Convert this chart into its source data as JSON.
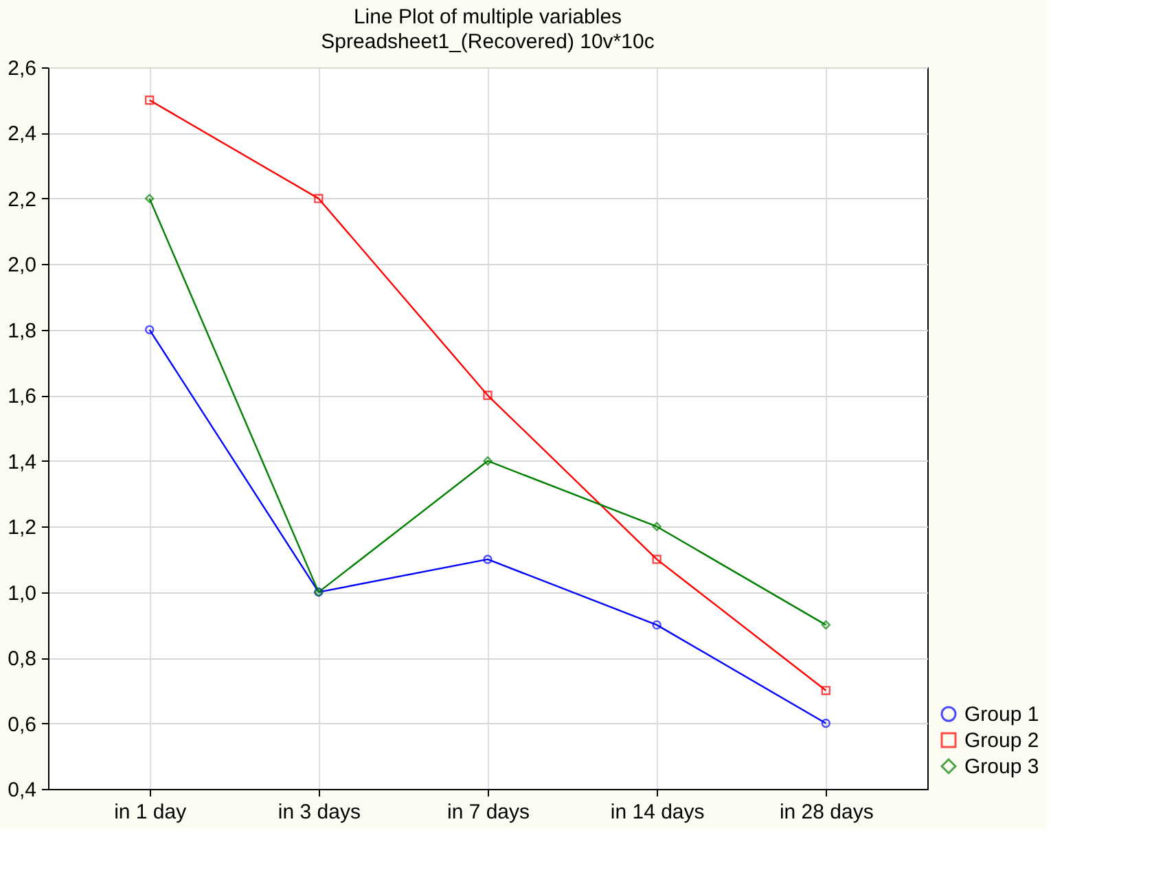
{
  "chart_data": {
    "type": "line",
    "title": "Line Plot of multiple variables",
    "subtitle": "Spreadsheet1_(Recovered) 10v*10c",
    "categories": [
      "in 1 day",
      "in 3 days",
      "in 7 days",
      "in 14 days",
      "in 28 days"
    ],
    "series": [
      {
        "name": "Group 1",
        "color": "#0000ff",
        "marker": "circle",
        "values": [
          1.8,
          1.0,
          1.1,
          0.9,
          0.6
        ]
      },
      {
        "name": "Group 2",
        "color": "#ff0000",
        "marker": "square",
        "values": [
          2.5,
          2.2,
          1.6,
          1.1,
          0.7
        ]
      },
      {
        "name": "Group 3",
        "color": "#008000",
        "marker": "diamond",
        "values": [
          2.2,
          1.0,
          1.4,
          1.2,
          0.9
        ]
      }
    ],
    "ylim": [
      0.4,
      2.6
    ],
    "yticks": [
      {
        "value": 0.4,
        "label": "0,4"
      },
      {
        "value": 0.6,
        "label": "0,6"
      },
      {
        "value": 0.8,
        "label": "0,8"
      },
      {
        "value": 1.0,
        "label": "1,0"
      },
      {
        "value": 1.2,
        "label": "1,2"
      },
      {
        "value": 1.4,
        "label": "1,4"
      },
      {
        "value": 1.6,
        "label": "1,6"
      },
      {
        "value": 1.8,
        "label": "1,8"
      },
      {
        "value": 2.0,
        "label": "2,0"
      },
      {
        "value": 2.2,
        "label": "2,2"
      },
      {
        "value": 2.4,
        "label": "2,4"
      },
      {
        "value": 2.6,
        "label": "2,6"
      }
    ],
    "grid": true,
    "legend": "bottom right",
    "line_style": "solid"
  }
}
